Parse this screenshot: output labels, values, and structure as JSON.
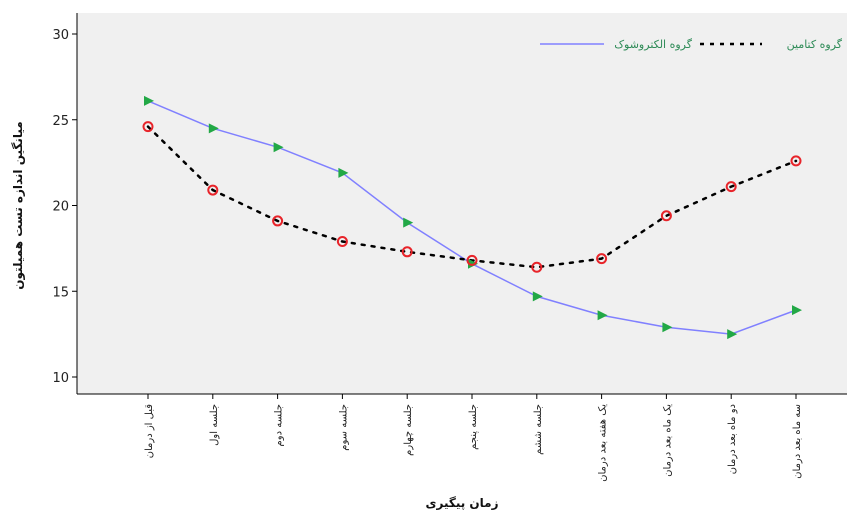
{
  "chart_data": {
    "type": "line",
    "title": "",
    "xlabel": "زمان پیگیری",
    "ylabel": "میانگین اندازه تست همیلتون",
    "ylim": [
      10,
      30
    ],
    "yticks": [
      10,
      15,
      20,
      25,
      30
    ],
    "grid": false,
    "legend_position": "top-right",
    "categories": [
      "قبل از درمان",
      "جلسه اول",
      "جلسه دوم",
      "جلسه سوم",
      "جلسه چهارم",
      "جلسه پنجم",
      "جلسه ششم",
      "یک هفته بعد درمان",
      "یک ماه بعد درمان",
      "دو ماه بعد درمان",
      "سه ماه بعد درمان"
    ],
    "series": [
      {
        "name": "گروه الکتروشوک",
        "color": "#8080ff",
        "marker": "triangle",
        "marker_color": "#22a846",
        "dashed": false,
        "values": [
          26.1,
          24.5,
          23.4,
          21.9,
          19.0,
          16.6,
          14.7,
          13.6,
          12.9,
          12.5,
          13.9
        ]
      },
      {
        "name": "گروه کتامین",
        "color": "#000000",
        "marker": "circle",
        "marker_color": "#e8242a",
        "dashed": true,
        "values": [
          24.6,
          20.9,
          19.1,
          17.9,
          17.3,
          16.8,
          16.4,
          16.9,
          19.4,
          21.1,
          22.6
        ]
      }
    ]
  }
}
